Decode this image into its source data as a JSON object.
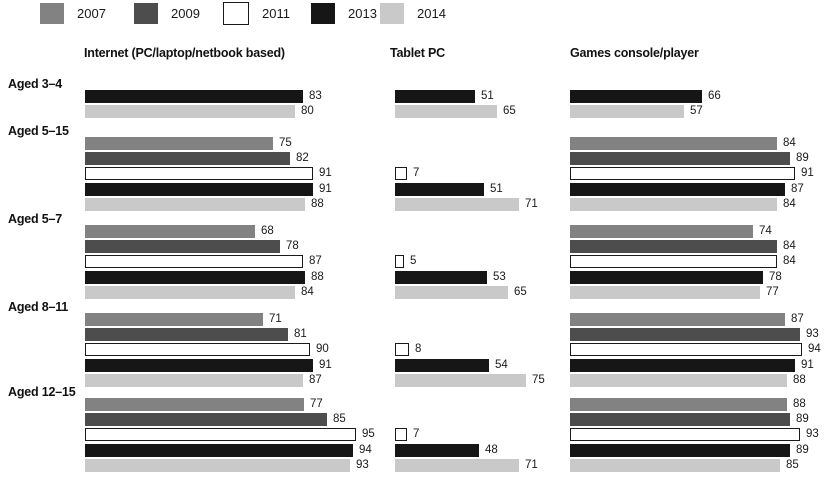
{
  "legend": {
    "items": [
      {
        "year": "2007",
        "color": "#828282"
      },
      {
        "year": "2009",
        "color": "#4d4d4d"
      },
      {
        "year": "2011",
        "color": "#ffffff",
        "border": "#1a1a1a"
      },
      {
        "year": "2013",
        "color": "#161616"
      },
      {
        "year": "2014",
        "color": "#c9c9c9"
      }
    ]
  },
  "chart_data": {
    "type": "bar",
    "orientation": "horizontal",
    "title": "",
    "legend_position": "top",
    "axis": "none (value labels printed at bar ends)",
    "value_range": [
      0,
      100
    ],
    "years": [
      "2007",
      "2009",
      "2011",
      "2013",
      "2014"
    ],
    "columns": [
      {
        "key": "internet",
        "label": "Internet (PC/laptop/netbook based)"
      },
      {
        "key": "tablet",
        "label": "Tablet PC"
      },
      {
        "key": "games",
        "label": "Games console/player"
      }
    ],
    "groups": [
      {
        "label": "Aged 3–4",
        "internet": {
          "2013": 83,
          "2014": 80
        },
        "tablet": {
          "2013": 51,
          "2014": 65
        },
        "games": {
          "2013": 66,
          "2014": 57
        }
      },
      {
        "label": "Aged 5–15",
        "internet": {
          "2007": 75,
          "2009": 82,
          "2011": 91,
          "2013": 91,
          "2014": 88
        },
        "tablet": {
          "2011": 7,
          "2013": 51,
          "2014": 71
        },
        "games": {
          "2007": 84,
          "2009": 89,
          "2011": 91,
          "2013": 87,
          "2014": 84
        }
      },
      {
        "label": "Aged 5–7",
        "internet": {
          "2007": 68,
          "2009": 78,
          "2011": 87,
          "2013": 88,
          "2014": 84
        },
        "tablet": {
          "2011": 5,
          "2013": 53,
          "2014": 65
        },
        "games": {
          "2007": 74,
          "2009": 84,
          "2011": 84,
          "2013": 78,
          "2014": 77
        }
      },
      {
        "label": "Aged 8–11",
        "internet": {
          "2007": 71,
          "2009": 81,
          "2011": 90,
          "2013": 91,
          "2014": 87
        },
        "tablet": {
          "2011": 8,
          "2013": 54,
          "2014": 75
        },
        "games": {
          "2007": 87,
          "2009": 93,
          "2011": 94,
          "2013": 91,
          "2014": 88
        }
      },
      {
        "label": "Aged 12–15",
        "internet": {
          "2007": 77,
          "2009": 85,
          "2011": 95,
          "2013": 94,
          "2014": 93
        },
        "tablet": {
          "2011": 7,
          "2013": 48,
          "2014": 71
        },
        "games": {
          "2007": 88,
          "2009": 89,
          "2011": 93,
          "2013": 89,
          "2014": 85
        }
      }
    ]
  }
}
